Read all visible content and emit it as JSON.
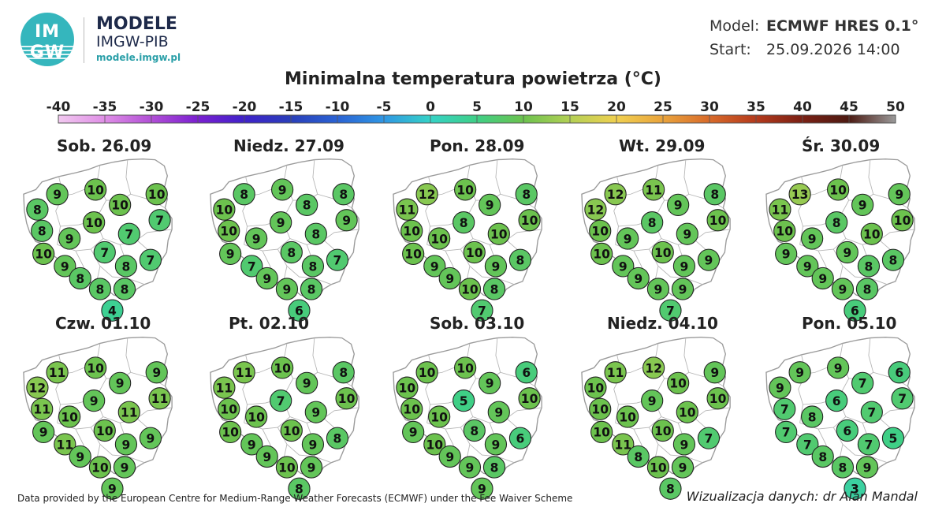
{
  "header": {
    "logo_line1": "IM",
    "logo_line2": "GW",
    "brand_title": "MODELE",
    "brand_subtitle": "IMGW-PIB",
    "brand_url": "modele.imgw.pl",
    "model_label": "Model:",
    "model_value": "ECMWF HRES 0.1°",
    "start_label": "Start:",
    "start_value": "25.09.2026 14:00"
  },
  "title": "Minimalna temperatura powietrza (°C)",
  "scale_ticks": [
    "-40",
    "-35",
    "-30",
    "-25",
    "-20",
    "-15",
    "-10",
    "-5",
    "0",
    "5",
    "10",
    "15",
    "20",
    "25",
    "30",
    "35",
    "40",
    "45",
    "50"
  ],
  "maps": [
    {
      "day": "Sob. 26.09",
      "values": [
        8,
        9,
        10,
        10,
        10,
        7,
        8,
        9,
        10,
        7,
        10,
        7,
        9,
        8,
        7,
        8,
        8,
        8,
        4
      ]
    },
    {
      "day": "Niedz. 27.09",
      "values": [
        10,
        8,
        9,
        8,
        8,
        9,
        10,
        9,
        9,
        8,
        9,
        8,
        7,
        8,
        7,
        9,
        9,
        8,
        6
      ]
    },
    {
      "day": "Pon. 28.09",
      "values": [
        11,
        12,
        10,
        9,
        8,
        10,
        10,
        10,
        8,
        10,
        10,
        10,
        9,
        9,
        8,
        9,
        10,
        8,
        7
      ]
    },
    {
      "day": "Wt. 29.09",
      "values": [
        12,
        12,
        11,
        9,
        8,
        10,
        10,
        9,
        8,
        9,
        10,
        10,
        9,
        9,
        9,
        9,
        9,
        9,
        7
      ]
    },
    {
      "day": "Śr. 30.09",
      "values": [
        11,
        13,
        10,
        9,
        9,
        10,
        10,
        9,
        8,
        10,
        9,
        9,
        9,
        8,
        8,
        9,
        9,
        8,
        6
      ]
    },
    {
      "day": "Czw. 01.10",
      "values": [
        12,
        11,
        10,
        9,
        9,
        11,
        11,
        10,
        9,
        11,
        9,
        10,
        11,
        9,
        9,
        9,
        10,
        9,
        9
      ]
    },
    {
      "day": "Pt. 02.10",
      "values": [
        11,
        11,
        10,
        9,
        8,
        10,
        10,
        10,
        7,
        9,
        10,
        10,
        9,
        9,
        8,
        9,
        10,
        9,
        8
      ]
    },
    {
      "day": "Sob. 03.10",
      "values": [
        10,
        10,
        10,
        9,
        6,
        10,
        10,
        10,
        5,
        9,
        9,
        8,
        10,
        9,
        6,
        9,
        9,
        8,
        9
      ]
    },
    {
      "day": "Niedz. 04.10",
      "values": [
        10,
        11,
        12,
        10,
        9,
        10,
        10,
        10,
        9,
        10,
        10,
        10,
        11,
        9,
        7,
        8,
        10,
        9,
        8
      ]
    },
    {
      "day": "Pon. 05.10",
      "values": [
        9,
        9,
        9,
        7,
        6,
        7,
        7,
        8,
        6,
        7,
        7,
        6,
        7,
        7,
        5,
        8,
        8,
        9,
        3
      ]
    }
  ],
  "footer": {
    "source": "Data provided by the European Centre for Medium-Range Weather Forecasts (ECMWF) under the Fee Waiver Scheme",
    "credit": "Wizualizacja danych: dr Alan Mandal"
  }
}
